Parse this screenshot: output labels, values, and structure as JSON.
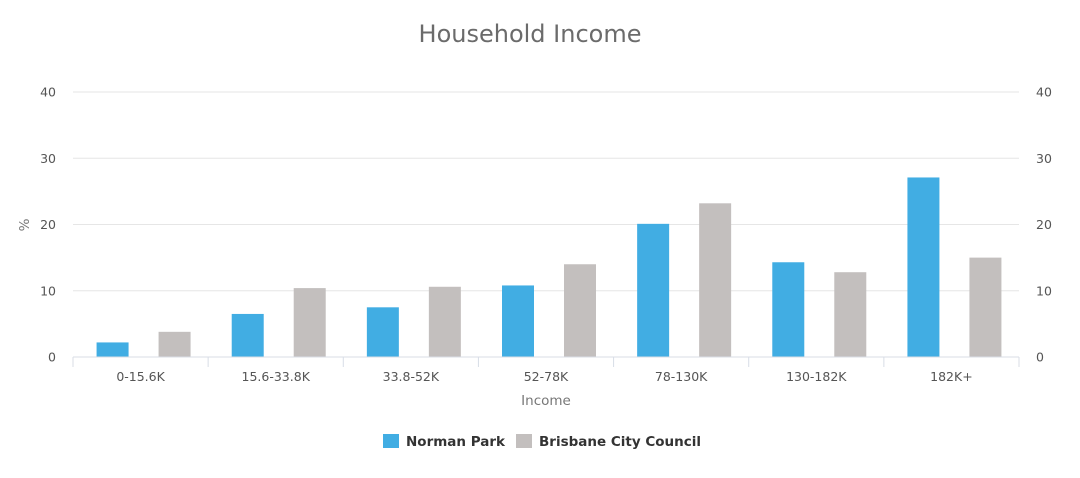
{
  "chart_data": {
    "type": "bar",
    "title": "Household Income",
    "xlabel": "Income",
    "ylabel": "%",
    "ylim": [
      0,
      40
    ],
    "yticks": [
      0,
      10,
      20,
      30,
      40
    ],
    "secondary_y_axis": true,
    "grid": true,
    "legend_position": "bottom-center",
    "categories": [
      "0-15.6K",
      "15.6-33.8K",
      "33.8-52K",
      "52-78K",
      "78-130K",
      "130-182K",
      "182K+"
    ],
    "series": [
      {
        "name": "Norman Park",
        "color": "#41ade3",
        "values": [
          2.2,
          6.5,
          7.5,
          10.8,
          20.1,
          14.3,
          27.1
        ]
      },
      {
        "name": "Brisbane City Council",
        "color": "#c3bfbe",
        "values": [
          3.8,
          10.4,
          10.6,
          14.0,
          23.2,
          12.8,
          15.0
        ]
      }
    ]
  }
}
